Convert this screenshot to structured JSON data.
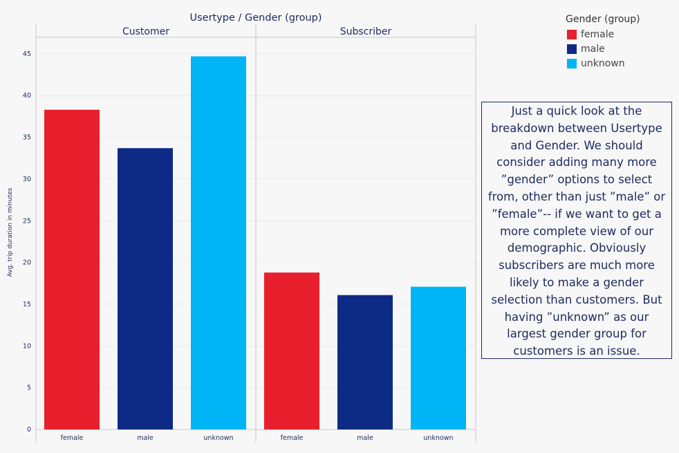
{
  "chart_data": {
    "type": "bar",
    "title": "Usertype / Gender (group)",
    "ylabel": "Avg. trip duration in minutes",
    "ylim": [
      0,
      47
    ],
    "yticks": [
      0,
      5,
      10,
      15,
      20,
      25,
      30,
      35,
      40,
      45
    ],
    "panels": [
      "Customer",
      "Subscriber"
    ],
    "categories": [
      "female",
      "male",
      "unknown"
    ],
    "values": [
      [
        38.3,
        33.7,
        44.7
      ],
      [
        18.8,
        16.1,
        17.1
      ]
    ],
    "colors": [
      "#e81f2c",
      "#0d2a85",
      "#00b5f6"
    ],
    "legend": {
      "title": "Gender (group)",
      "items": [
        "female",
        "male",
        "unknown"
      ],
      "position": "top-right"
    },
    "grid": true
  },
  "note": {
    "text": "Just a quick look at the breakdown between Usertype and Gender. We should consider adding many more ”gender” options to select from, other than just ”male” or ”female”-- if we want to get a more complete view of our demographic. Obviously subscribers are much more likely to make a gender selection than customers. But having ”unknown” as our largest gender group for customers is an issue."
  }
}
